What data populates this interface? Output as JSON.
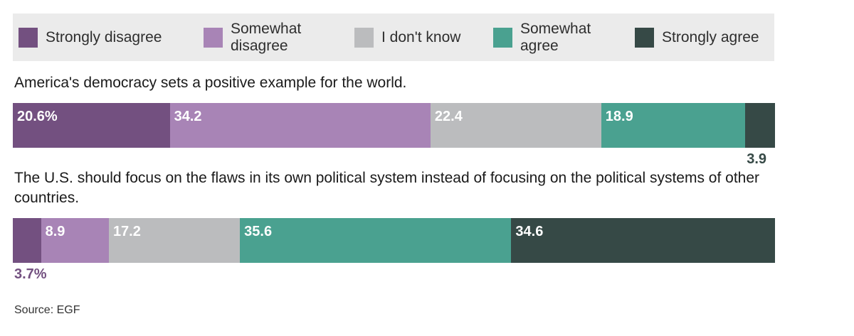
{
  "colors": {
    "strongly_disagree": "#735080",
    "somewhat_disagree": "#a884b6",
    "dont_know": "#bbbcbe",
    "somewhat_agree": "#4aa190",
    "strongly_agree": "#364946"
  },
  "legend": [
    {
      "key": "strongly_disagree",
      "label": "Strongly disagree"
    },
    {
      "key": "somewhat_disagree",
      "label": "Somewhat\ndisagree"
    },
    {
      "key": "dont_know",
      "label": "I don't know"
    },
    {
      "key": "somewhat_agree",
      "label": "Somewhat\nagree"
    },
    {
      "key": "strongly_agree",
      "label": "Strongly agree"
    }
  ],
  "chart_data": {
    "type": "bar",
    "orientation": "horizontal-stacked-100",
    "categories": [
      "America's democracy sets a positive example for the world.",
      "The U.S. should focus on the flaws in its own political system instead of focusing on the political systems of other countries."
    ],
    "series": [
      {
        "name": "Strongly disagree",
        "key": "strongly_disagree",
        "values": [
          20.6,
          3.7
        ],
        "labels": [
          "20.6%",
          "3.7%"
        ]
      },
      {
        "name": "Somewhat disagree",
        "key": "somewhat_disagree",
        "values": [
          34.2,
          8.9
        ],
        "labels": [
          "34.2",
          "8.9"
        ]
      },
      {
        "name": "I don't know",
        "key": "dont_know",
        "values": [
          22.4,
          17.2
        ],
        "labels": [
          "22.4",
          "17.2"
        ]
      },
      {
        "name": "Somewhat agree",
        "key": "somewhat_agree",
        "values": [
          18.9,
          35.6
        ],
        "labels": [
          "18.9",
          "35.6"
        ]
      },
      {
        "name": "Strongly agree",
        "key": "strongly_agree",
        "values": [
          3.9,
          34.6
        ],
        "labels": [
          "3.9",
          "34.6"
        ]
      }
    ]
  },
  "source": "Source: EGF"
}
